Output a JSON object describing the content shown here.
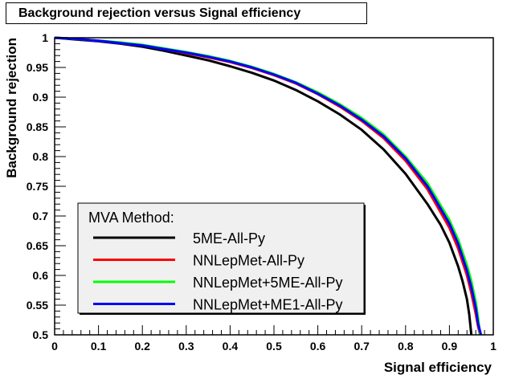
{
  "chart_data": {
    "type": "line",
    "title": "Background rejection versus Signal efficiency",
    "xlabel": "Signal efficiency",
    "ylabel": "Background rejection",
    "xlim": [
      0,
      1
    ],
    "ylim": [
      0.5,
      1
    ],
    "x_ticks": [
      "0",
      "0.1",
      "0.2",
      "0.3",
      "0.4",
      "0.5",
      "0.6",
      "0.7",
      "0.8",
      "0.9",
      "1"
    ],
    "y_ticks": [
      "0.5",
      "0.55",
      "0.6",
      "0.65",
      "0.7",
      "0.75",
      "0.8",
      "0.85",
      "0.9",
      "0.95",
      "1"
    ],
    "grid": false,
    "legend": {
      "header": "MVA Method:",
      "placement": "bottom-left"
    },
    "series": [
      {
        "name": "5ME-All-Py",
        "color": "#000000",
        "x": [
          0.0,
          0.05,
          0.1,
          0.15,
          0.2,
          0.25,
          0.3,
          0.35,
          0.4,
          0.45,
          0.5,
          0.55,
          0.6,
          0.65,
          0.7,
          0.75,
          0.8,
          0.85,
          0.88,
          0.9,
          0.92,
          0.93,
          0.94,
          0.945,
          0.95
        ],
        "y": [
          1.0,
          0.997,
          0.994,
          0.99,
          0.985,
          0.978,
          0.97,
          0.962,
          0.952,
          0.941,
          0.928,
          0.912,
          0.893,
          0.871,
          0.845,
          0.812,
          0.771,
          0.72,
          0.685,
          0.655,
          0.615,
          0.59,
          0.56,
          0.535,
          0.5
        ]
      },
      {
        "name": "NNLepMet-All-Py",
        "color": "#ff0000",
        "x": [
          0.0,
          0.05,
          0.1,
          0.15,
          0.2,
          0.25,
          0.3,
          0.35,
          0.4,
          0.45,
          0.5,
          0.55,
          0.6,
          0.65,
          0.7,
          0.75,
          0.8,
          0.85,
          0.9,
          0.92,
          0.94,
          0.95,
          0.96,
          0.965,
          0.97
        ],
        "y": [
          1.0,
          0.998,
          0.995,
          0.991,
          0.987,
          0.981,
          0.974,
          0.967,
          0.959,
          0.949,
          0.937,
          0.923,
          0.905,
          0.884,
          0.86,
          0.831,
          0.793,
          0.745,
          0.68,
          0.645,
          0.6,
          0.57,
          0.535,
          0.515,
          0.5
        ]
      },
      {
        "name": "NNLepMet+5ME-All-Py",
        "color": "#00ff00",
        "x": [
          0.0,
          0.05,
          0.1,
          0.15,
          0.2,
          0.25,
          0.3,
          0.35,
          0.4,
          0.45,
          0.5,
          0.55,
          0.6,
          0.65,
          0.7,
          0.75,
          0.8,
          0.85,
          0.9,
          0.92,
          0.94,
          0.95,
          0.96,
          0.965,
          0.97
        ],
        "y": [
          1.0,
          0.998,
          0.995,
          0.992,
          0.988,
          0.982,
          0.976,
          0.969,
          0.961,
          0.951,
          0.939,
          0.925,
          0.908,
          0.888,
          0.865,
          0.837,
          0.8,
          0.755,
          0.693,
          0.66,
          0.617,
          0.59,
          0.555,
          0.53,
          0.5
        ]
      },
      {
        "name": "NNLepMet+ME1-All-Py",
        "color": "#0000ff",
        "x": [
          0.0,
          0.05,
          0.1,
          0.15,
          0.2,
          0.25,
          0.3,
          0.35,
          0.4,
          0.45,
          0.5,
          0.55,
          0.6,
          0.65,
          0.7,
          0.75,
          0.8,
          0.85,
          0.9,
          0.92,
          0.94,
          0.95,
          0.96,
          0.965,
          0.972
        ],
        "y": [
          1.0,
          0.998,
          0.995,
          0.991,
          0.987,
          0.981,
          0.975,
          0.968,
          0.96,
          0.95,
          0.938,
          0.924,
          0.906,
          0.886,
          0.862,
          0.834,
          0.797,
          0.75,
          0.687,
          0.653,
          0.608,
          0.58,
          0.545,
          0.52,
          0.5
        ]
      }
    ]
  }
}
